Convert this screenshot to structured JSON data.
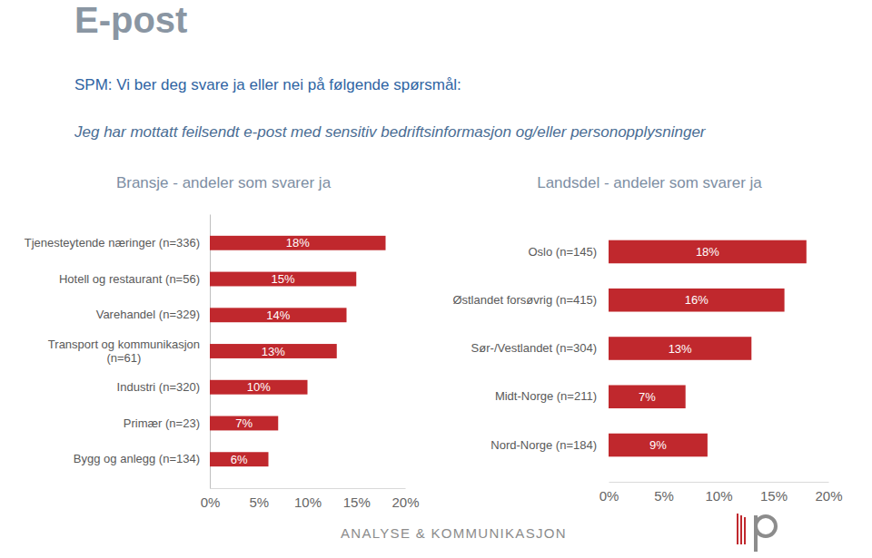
{
  "page": {
    "title": "E-post",
    "question": "SPM: Vi ber deg svare ja eller nei på følgende spørsmål:",
    "statement": "Jeg har mottatt feilsendt e-post med sensitiv bedriftsinformasjon og/eller personopplysninger",
    "footer": "ANALYSE & KOMMUNIKASJON"
  },
  "chart_data": [
    {
      "type": "bar",
      "title": "Bransje - andeler som svarer ja",
      "orientation": "horizontal",
      "categories": [
        "Tjenesteytende næringer (n=336)",
        "Hotell og restaurant (n=56)",
        "Varehandel (n=329)",
        "Transport og kommunikasjon (n=61)",
        "Industri (n=320)",
        "Primær (n=23)",
        "Bygg og anlegg (n=134)"
      ],
      "values": [
        18,
        15,
        14,
        13,
        10,
        7,
        6
      ],
      "value_labels": [
        "18%",
        "15%",
        "14%",
        "13%",
        "10%",
        "7%",
        "6%"
      ],
      "color": "#c0282d",
      "data_labels": true,
      "grid": false,
      "xlim": [
        0,
        20
      ],
      "xticks": [
        {
          "value": 0,
          "label": "0%"
        },
        {
          "value": 5,
          "label": "5%"
        },
        {
          "value": 10,
          "label": "10%"
        },
        {
          "value": 15,
          "label": "15%"
        },
        {
          "value": 20,
          "label": "20%"
        }
      ]
    },
    {
      "type": "bar",
      "title": "Landsdel - andeler som svarer ja",
      "orientation": "horizontal",
      "categories": [
        "Oslo (n=145)",
        "Østlandet forsøvrig (n=415)",
        "Sør-/Vestlandet (n=304)",
        "Midt-Norge (n=211)",
        "Nord-Norge (n=184)"
      ],
      "values": [
        18,
        16,
        13,
        7,
        9
      ],
      "value_labels": [
        "18%",
        "16%",
        "13%",
        "7%",
        "9%"
      ],
      "color": "#c0282d",
      "data_labels": true,
      "grid": false,
      "xlim": [
        0,
        20
      ],
      "xticks": [
        {
          "value": 0,
          "label": "0%"
        },
        {
          "value": 5,
          "label": "5%"
        },
        {
          "value": 10,
          "label": "10%"
        },
        {
          "value": 15,
          "label": "15%"
        },
        {
          "value": 20,
          "label": "20%"
        }
      ]
    }
  ]
}
